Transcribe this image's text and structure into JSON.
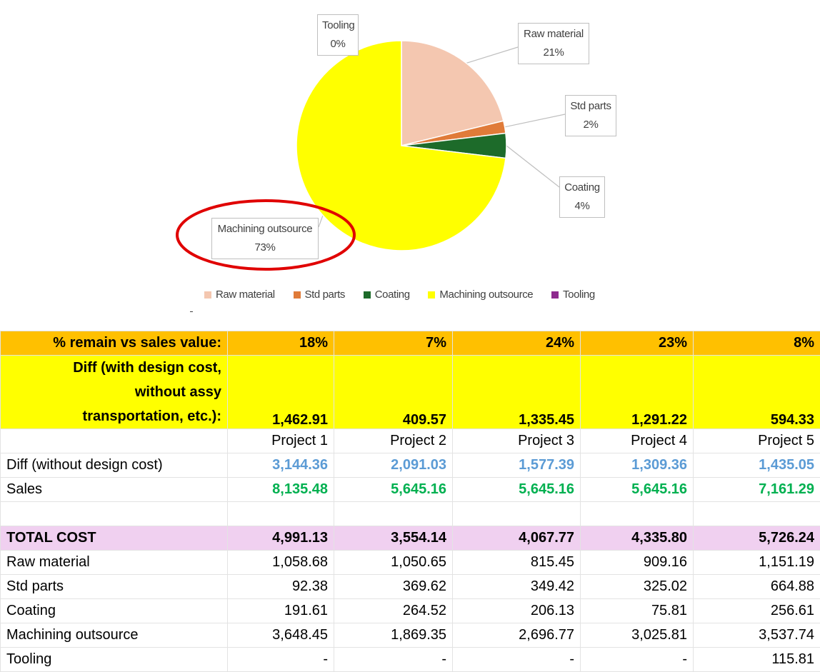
{
  "chart_data": {
    "type": "pie",
    "title": "",
    "categories": [
      "Raw material",
      "Std parts",
      "Coating",
      "Machining outsource",
      "Tooling"
    ],
    "values": [
      21.2,
      1.9,
      3.8,
      73.1,
      0.0
    ],
    "value_labels": [
      "21%",
      "2%",
      "4%",
      "73%",
      "0%"
    ],
    "colors": [
      "#f4c7b0",
      "#e07b39",
      "#1d6b2a",
      "#ffff00",
      "#8e2a8e"
    ],
    "legend": {
      "position": "bottom",
      "entries": [
        "Raw material",
        "Std parts",
        "Coating",
        "Machining outsource",
        "Tooling"
      ]
    },
    "highlight": "Machining outsource"
  },
  "table": {
    "pct_row": {
      "label": "% remain vs sales value:",
      "values": [
        "18%",
        "7%",
        "24%",
        "23%",
        "8%"
      ]
    },
    "diff_design_row": {
      "label_lines": [
        "Diff (with design cost,",
        "without assy",
        "transportation, etc.):"
      ],
      "values": [
        "1,462.91",
        "409.57",
        "1,335.45",
        "1,291.22",
        "594.33"
      ]
    },
    "projects": [
      "Project 1",
      "Project 2",
      "Project 3",
      "Project 4",
      "Project 5"
    ],
    "diff_row": {
      "label": "Diff (without design cost)",
      "values": [
        "3,144.36",
        "2,091.03",
        "1,577.39",
        "1,309.36",
        "1,435.05"
      ]
    },
    "sales_row": {
      "label": "Sales",
      "values": [
        "8,135.48",
        "5,645.16",
        "5,645.16",
        "5,645.16",
        "7,161.29"
      ]
    },
    "total_row": {
      "label": "TOTAL COST",
      "values": [
        "4,991.13",
        "3,554.14",
        "4,067.77",
        "4,335.80",
        "5,726.24"
      ]
    },
    "cost_rows": [
      {
        "label": "Raw material",
        "values": [
          "1,058.68",
          "1,050.65",
          "815.45",
          "909.16",
          "1,151.19"
        ]
      },
      {
        "label": "Std parts",
        "values": [
          "92.38",
          "369.62",
          "349.42",
          "325.02",
          "664.88"
        ]
      },
      {
        "label": "Coating",
        "values": [
          "191.61",
          "264.52",
          "206.13",
          "75.81",
          "256.61"
        ]
      },
      {
        "label": "Machining outsource",
        "values": [
          "3,648.45",
          "1,869.35",
          "2,696.77",
          "3,025.81",
          "3,537.74"
        ]
      },
      {
        "label": "Tooling",
        "values": [
          "-",
          "-",
          "-",
          "-",
          "115.81"
        ]
      }
    ],
    "colors": {
      "pct_bg": "#ffc000",
      "diff_design_bg": "#ffff00",
      "total_bg": "#f0d0f0",
      "diff_text": "#5b9bd5",
      "sales_text": "#00b050"
    }
  }
}
